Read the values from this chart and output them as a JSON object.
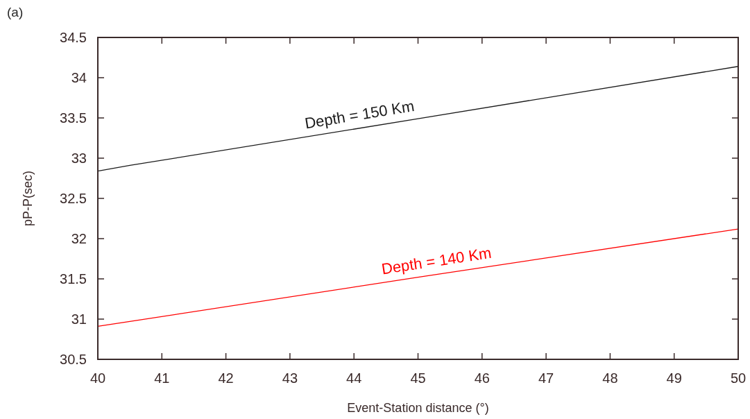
{
  "chart_data": {
    "type": "line",
    "xlabel": "Event-Station distance (°)",
    "ylabel": "pP-P(sec)",
    "annotations": [
      "(a)"
    ],
    "xlim": [
      40,
      50
    ],
    "xticks": [
      40,
      41,
      42,
      43,
      44,
      45,
      46,
      47,
      48,
      49,
      50
    ],
    "ylim": [
      30.5,
      34.5
    ],
    "yticks": [
      30.5,
      31,
      {
        "value": 31.5,
        "label": "31.5"
      },
      32,
      32.5,
      33,
      33.5,
      34,
      34.5
    ],
    "grid": false,
    "legend": false,
    "marker": "none",
    "line_style": "solid",
    "series": [
      {
        "name": "Depth = 150 Km",
        "color": "#1a1a1a",
        "x": [
          40,
          40.5,
          45,
          50
        ],
        "values": [
          32.84,
          32.91,
          33.49,
          34.14
        ]
      },
      {
        "name": "Depth = 140 Km",
        "color": "#ff0000",
        "x": [
          40,
          40.5,
          45,
          50
        ],
        "values": [
          30.91,
          30.97,
          31.52,
          32.12
        ]
      }
    ]
  }
}
